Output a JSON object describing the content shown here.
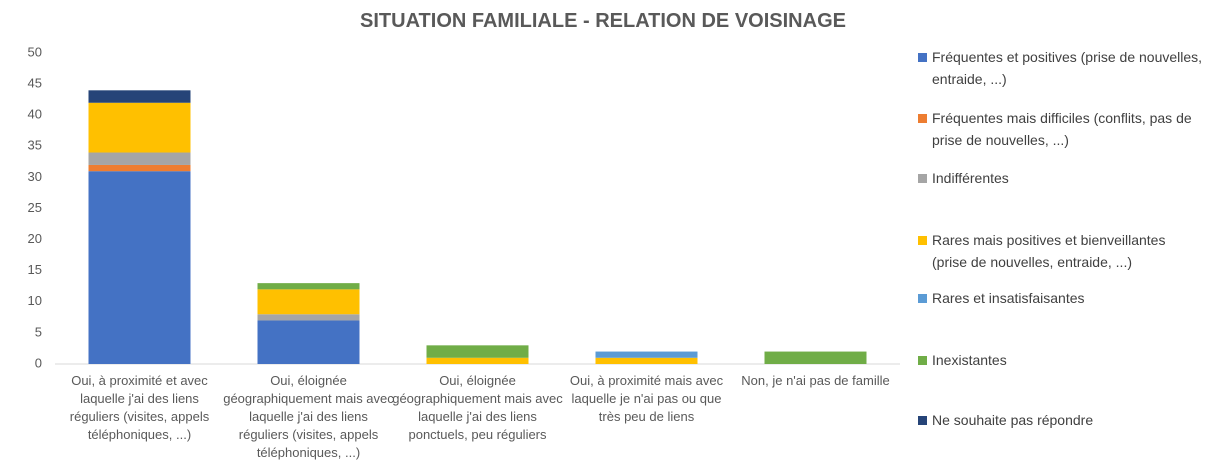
{
  "chart_data": {
    "type": "bar",
    "stacked": true,
    "title": "SITUATION FAMILIALE - RELATION DE VOISINAGE",
    "categories": [
      "Oui, à proximité et avec laquelle j'ai des liens réguliers (visites, appels téléphoniques, ...)",
      "Oui, éloignée géographiquement mais avec laquelle j'ai des liens réguliers (visites, appels téléphoniques, ...)",
      "Oui, éloignée géographiquement mais avec laquelle j'ai des liens ponctuels, peu réguliers",
      "Oui, à proximité mais avec laquelle je n'ai pas ou que très peu de liens",
      "Non, je n'ai pas de famille"
    ],
    "series": [
      {
        "name": "Fréquentes et positives (prise de nouvelles, entraide, ...)",
        "color": "#4472c4",
        "values": [
          31,
          7,
          0,
          0,
          0
        ]
      },
      {
        "name": "Fréquentes mais difficiles (conflits, pas de prise de nouvelles, ...)",
        "color": "#ed7d31",
        "values": [
          1,
          0,
          0,
          0,
          0
        ]
      },
      {
        "name": "Indifférentes",
        "color": "#a5a5a5",
        "values": [
          2,
          1,
          0,
          0,
          0
        ]
      },
      {
        "name": "Rares mais positives et bienveillantes (prise de nouvelles, entraide, ...)",
        "color": "#ffc000",
        "values": [
          8,
          4,
          1,
          1,
          0
        ]
      },
      {
        "name": "Rares et insatisfaisantes",
        "color": "#5b9bd5",
        "values": [
          0,
          0,
          0,
          1,
          0
        ]
      },
      {
        "name": "Inexistantes",
        "color": "#70ad47",
        "values": [
          0,
          1,
          2,
          0,
          2
        ]
      },
      {
        "name": "Ne souhaite pas répondre",
        "color": "#264478",
        "values": [
          2,
          0,
          0,
          0,
          0
        ]
      }
    ],
    "ylim": [
      0,
      50
    ],
    "yticks": [
      0,
      5,
      10,
      15,
      20,
      25,
      30,
      35,
      40,
      45,
      50
    ],
    "grid": false,
    "legend": "right"
  }
}
